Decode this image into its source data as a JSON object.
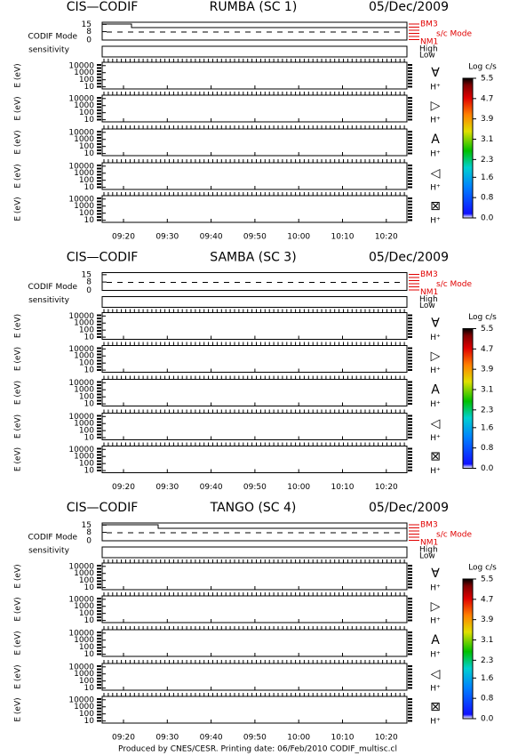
{
  "chart_data": [
    {
      "type": "spectrogram",
      "instrument": "CIS—CODIF",
      "title": "RUMBA (SC 1)",
      "date": "05/Dec/2009",
      "mode_label": "CODIF Mode",
      "mode_ylim": [
        0,
        17
      ],
      "mode_yticks": [
        15,
        8,
        0
      ],
      "mode_levels": [
        "BM3",
        "NM1"
      ],
      "mode_axis_label": "s/c Mode",
      "sensitivity_label": "sensitivity",
      "sensitivity_levels": [
        "High",
        "Low"
      ],
      "ylabel": "E (eV)",
      "yscale": "log",
      "ylim": [
        5,
        30000
      ],
      "yticks": [
        10000,
        1000,
        100,
        10
      ],
      "panels": [
        {
          "symbol": "∀",
          "species": "H⁺"
        },
        {
          "symbol": "▷",
          "species": "H⁺"
        },
        {
          "symbol": "A",
          "species": "H⁺"
        },
        {
          "symbol": "◁",
          "species": "H⁺"
        },
        {
          "symbol": "⊠",
          "species": "H⁺"
        }
      ],
      "xtick_labels": [
        "09:20",
        "09:30",
        "09:40",
        "09:50",
        "10:00",
        "10:10",
        "10:20"
      ],
      "colorbar": {
        "label": "Log c/s",
        "lim": [
          0,
          5.5
        ],
        "ticks": [
          5.5,
          4.7,
          3.9,
          3.1,
          2.3,
          1.6,
          0.8,
          {
            "value": 0,
            "label": "0.0"
          }
        ]
      }
    },
    {
      "type": "spectrogram",
      "instrument": "CIS—CODIF",
      "title": "SAMBA (SC 3)",
      "date": "05/Dec/2009",
      "mode_label": "CODIF Mode",
      "mode_ylim": [
        0,
        17
      ],
      "mode_yticks": [
        15,
        8,
        0
      ],
      "mode_levels": [
        "BM3",
        "NM1"
      ],
      "mode_axis_label": "s/c Mode",
      "sensitivity_label": "sensitivity",
      "sensitivity_levels": [
        "High",
        "Low"
      ],
      "ylabel": "E (eV)",
      "yscale": "log",
      "ylim": [
        5,
        30000
      ],
      "yticks": [
        10000,
        1000,
        100,
        10
      ],
      "panels": [
        {
          "symbol": "∀",
          "species": "H⁺"
        },
        {
          "symbol": "▷",
          "species": "H⁺"
        },
        {
          "symbol": "A",
          "species": "H⁺"
        },
        {
          "symbol": "◁",
          "species": "H⁺"
        },
        {
          "symbol": "⊠",
          "species": "H⁺"
        }
      ],
      "xtick_labels": [
        "09:20",
        "09:30",
        "09:40",
        "09:50",
        "10:00",
        "10:10",
        "10:20"
      ],
      "colorbar": {
        "label": "Log c/s",
        "lim": [
          0,
          5.5
        ],
        "ticks": [
          5.5,
          4.7,
          3.9,
          3.1,
          2.3,
          1.6,
          0.8,
          {
            "value": 0,
            "label": "0.0"
          }
        ]
      }
    },
    {
      "type": "spectrogram",
      "instrument": "CIS—CODIF",
      "title": "TANGO (SC 4)",
      "date": "05/Dec/2009",
      "mode_label": "CODIF Mode",
      "mode_ylim": [
        0,
        17
      ],
      "mode_yticks": [
        15,
        8,
        0
      ],
      "mode_levels": [
        "BM3",
        "NM1"
      ],
      "mode_axis_label": "s/c Mode",
      "sensitivity_label": "sensitivity",
      "sensitivity_levels": [
        "High",
        "Low"
      ],
      "ylabel": "E (eV)",
      "yscale": "log",
      "ylim": [
        5,
        30000
      ],
      "yticks": [
        10000,
        1000,
        100,
        10
      ],
      "panels": [
        {
          "symbol": "∀",
          "species": "H⁺"
        },
        {
          "symbol": "▷",
          "species": "H⁺"
        },
        {
          "symbol": "A",
          "species": "H⁺"
        },
        {
          "symbol": "◁",
          "species": "H⁺"
        },
        {
          "symbol": "⊠",
          "species": "H⁺"
        }
      ],
      "xtick_labels": [
        "09:20",
        "09:30",
        "09:40",
        "09:50",
        "10:00",
        "10:10",
        "10:20"
      ],
      "colorbar": {
        "label": "Log c/s",
        "lim": [
          0,
          5.5
        ],
        "ticks": [
          5.5,
          4.7,
          3.9,
          3.1,
          2.3,
          1.6,
          0.8,
          {
            "value": 0,
            "label": "0.0"
          }
        ]
      }
    }
  ],
  "footer": "Produced by CNES/CESR.   Printing date: 06/Feb/2010   CODIF_multisc.cl"
}
